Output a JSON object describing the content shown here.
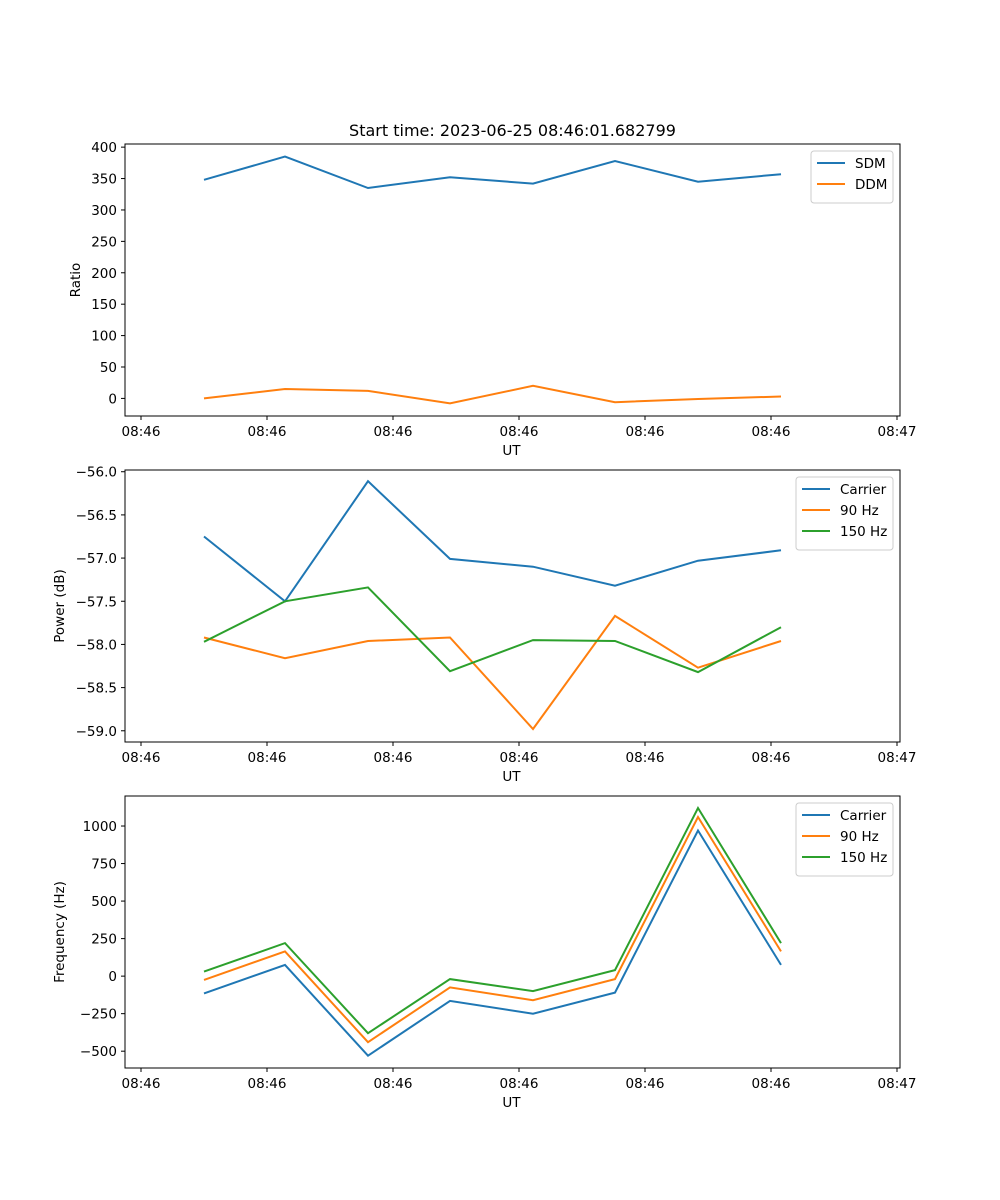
{
  "figure_title": "Start time: 2023-06-25 08:46:01.682799",
  "colors": {
    "blue": "#1f77b4",
    "orange": "#ff7f0e",
    "green": "#2ca02c"
  },
  "chart_data": [
    {
      "type": "line",
      "title": "Start time: 2023-06-25 08:46:01.682799",
      "xlabel": "UT",
      "ylabel": "Ratio",
      "x_tick_labels": [
        "08:46",
        "08:46",
        "08:46",
        "08:46",
        "08:46",
        "08:46",
        "08:46",
        "08:47"
      ],
      "y_ticks": [
        0,
        50,
        100,
        150,
        200,
        250,
        300,
        350,
        400
      ],
      "ylim": [
        -28,
        405
      ],
      "legend_position": "top-right",
      "series": [
        {
          "name": "SDM",
          "color": "#1f77b4",
          "values": [
            348,
            385,
            335,
            352,
            342,
            378,
            345,
            357
          ]
        },
        {
          "name": "DDM",
          "color": "#ff7f0e",
          "values": [
            0,
            15,
            12,
            -8,
            20,
            -6,
            -1,
            3
          ]
        }
      ]
    },
    {
      "type": "line",
      "title": "",
      "xlabel": "UT",
      "ylabel": "Power (dB)",
      "x_tick_labels": [
        "08:46",
        "08:46",
        "08:46",
        "08:46",
        "08:46",
        "08:46",
        "08:46",
        "08:47"
      ],
      "y_ticks": [
        -59.0,
        -58.5,
        -58.0,
        -57.5,
        -57.0,
        -56.5,
        -56.0
      ],
      "y_tick_labels": [
        "−59.0",
        "−58.5",
        "−58.0",
        "−57.5",
        "−57.0",
        "−56.5",
        "−56.0"
      ],
      "ylim": [
        -59.13,
        -55.98
      ],
      "legend_position": "top-right",
      "series": [
        {
          "name": "Carrier",
          "color": "#1f77b4",
          "values": [
            -56.75,
            -57.5,
            -56.11,
            -57.01,
            -57.1,
            -57.32,
            -57.03,
            -56.91
          ]
        },
        {
          "name": "90 Hz",
          "color": "#ff7f0e",
          "values": [
            -57.92,
            -58.16,
            -57.96,
            -57.92,
            -58.98,
            -57.67,
            -58.27,
            -57.96
          ]
        },
        {
          "name": "150 Hz",
          "color": "#2ca02c",
          "values": [
            -57.97,
            -57.5,
            -57.34,
            -58.31,
            -57.95,
            -57.96,
            -58.32,
            -57.8
          ]
        }
      ]
    },
    {
      "type": "line",
      "title": "",
      "xlabel": "UT",
      "ylabel": "Frequency (Hz)",
      "x_tick_labels": [
        "08:46",
        "08:46",
        "08:46",
        "08:46",
        "08:46",
        "08:46",
        "08:46",
        "08:47"
      ],
      "y_ticks": [
        -500,
        -250,
        0,
        250,
        500,
        750,
        1000
      ],
      "y_tick_labels": [
        "−500",
        "−250",
        "0",
        "250",
        "500",
        "750",
        "1000"
      ],
      "ylim": [
        -612,
        1200
      ],
      "legend_position": "top-right",
      "series": [
        {
          "name": "Carrier",
          "color": "#1f77b4",
          "values": [
            -115,
            75,
            -530,
            -165,
            -250,
            -110,
            970,
            75
          ]
        },
        {
          "name": "90 Hz",
          "color": "#ff7f0e",
          "values": [
            -25,
            165,
            -440,
            -75,
            -160,
            -20,
            1060,
            165
          ]
        },
        {
          "name": "150 Hz",
          "color": "#2ca02c",
          "values": [
            30,
            220,
            -380,
            -20,
            -100,
            40,
            1120,
            220
          ]
        }
      ]
    }
  ]
}
